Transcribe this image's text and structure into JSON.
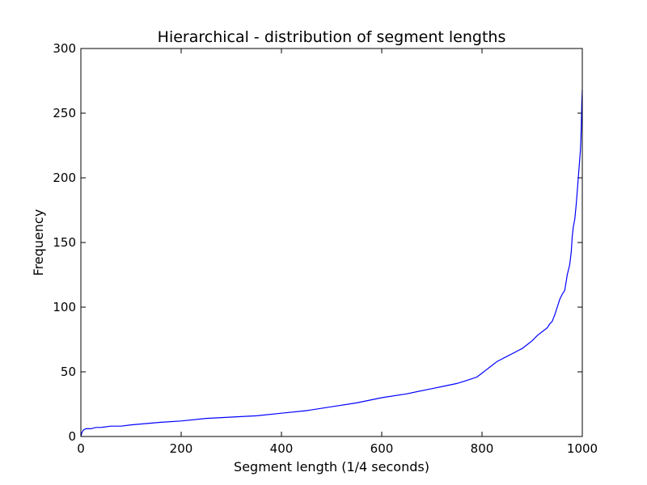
{
  "chart_data": {
    "type": "line",
    "title": "Hierarchical - distribution of segment lengths",
    "xlabel": "Segment length (1/4 seconds)",
    "ylabel": "Frequency",
    "xlim": [
      0,
      1000
    ],
    "ylim": [
      0,
      300
    ],
    "xticks": [
      0,
      200,
      400,
      600,
      800,
      1000
    ],
    "yticks": [
      0,
      50,
      100,
      150,
      200,
      250,
      300
    ],
    "grid": false,
    "series": [
      {
        "color": "#0000ff",
        "x": [
          0,
          2,
          5,
          10,
          15,
          20,
          30,
          40,
          60,
          80,
          100,
          130,
          160,
          200,
          250,
          300,
          350,
          400,
          450,
          500,
          550,
          600,
          650,
          700,
          725,
          750,
          775,
          790,
          800,
          810,
          820,
          830,
          840,
          850,
          860,
          870,
          880,
          890,
          900,
          910,
          920,
          930,
          935,
          940,
          945,
          950,
          955,
          960,
          965,
          970,
          975,
          978,
          980,
          982,
          985,
          988,
          990,
          992,
          994,
          996,
          997,
          998,
          999,
          1000
        ],
        "y": [
          0,
          3,
          5,
          6,
          6,
          6,
          7,
          7,
          8,
          8,
          9,
          10,
          11,
          12,
          14,
          15,
          16,
          18,
          20,
          23,
          26,
          30,
          33,
          37,
          39,
          41,
          44,
          46,
          49,
          52,
          55,
          58,
          60,
          62,
          64,
          66,
          68,
          71,
          74,
          78,
          81,
          84,
          87,
          89,
          94,
          100,
          106,
          110,
          113,
          125,
          133,
          143,
          155,
          162,
          168,
          180,
          190,
          200,
          210,
          220,
          228,
          240,
          258,
          268
        ]
      }
    ]
  }
}
